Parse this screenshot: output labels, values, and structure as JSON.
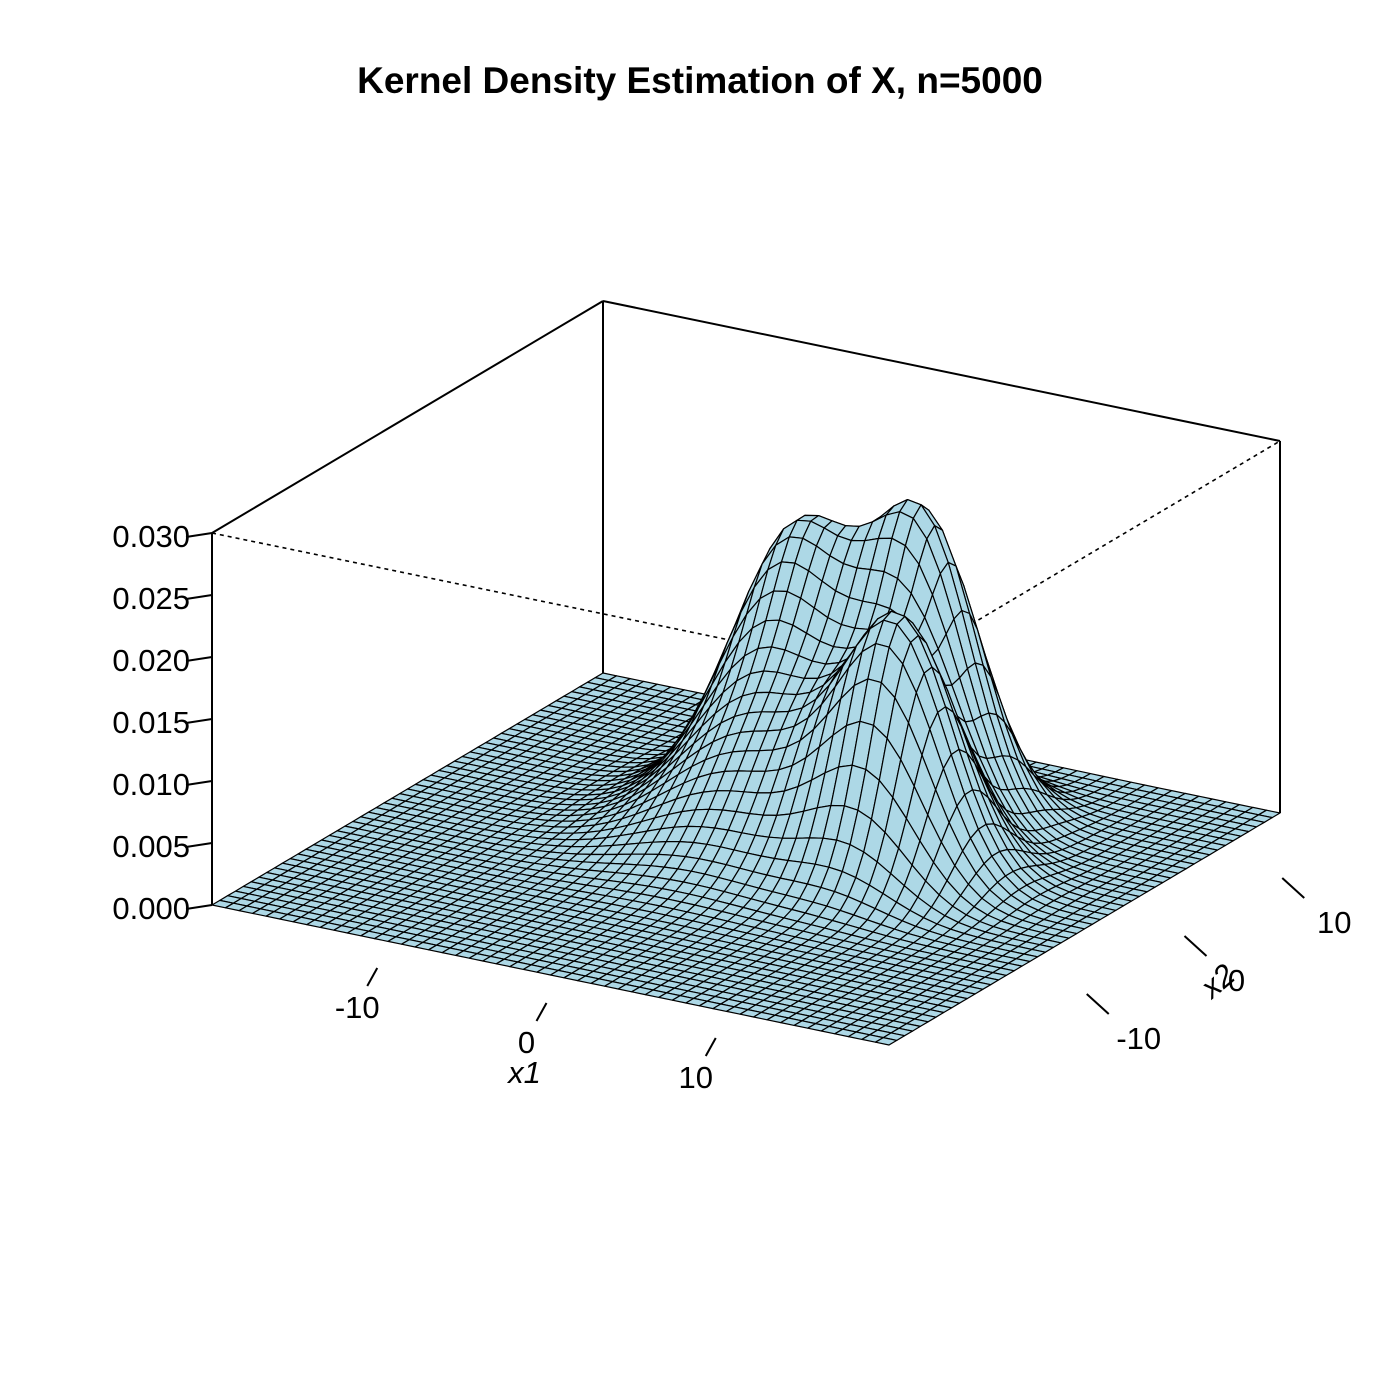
{
  "chart_data": {
    "type": "surface",
    "title": "Kernel Density Estimation of X, n=5000",
    "xlabel": "x1",
    "ylabel": "x2",
    "zlabel": "",
    "xlim": [
      -20,
      20
    ],
    "ylim": [
      -20,
      20
    ],
    "zlim": [
      0,
      0.03
    ],
    "x_ticks": [
      {
        "value": -10,
        "label": "-10"
      },
      {
        "value": 0,
        "label": "0"
      },
      {
        "value": 10,
        "label": "10"
      }
    ],
    "y_ticks": [
      {
        "value": -10,
        "label": "-10"
      },
      {
        "value": 0,
        "label": "0"
      },
      {
        "value": 10,
        "label": "10"
      }
    ],
    "z_ticks": [
      {
        "value": 0.0,
        "label": "0.000"
      },
      {
        "value": 0.005,
        "label": "0.005"
      },
      {
        "value": 0.01,
        "label": "0.010"
      },
      {
        "value": 0.015,
        "label": "0.015"
      },
      {
        "value": 0.02,
        "label": "0.020"
      },
      {
        "value": 0.025,
        "label": "0.025"
      },
      {
        "value": 0.03,
        "label": "0.030"
      }
    ],
    "grid_n": 50,
    "surface_color": "#add8e6",
    "line_color": "#000000",
    "components": [
      {
        "x1": 5,
        "x2": 10,
        "height": 0.0215,
        "spread": 2.8
      },
      {
        "x1": -2,
        "x2": 9,
        "height": 0.018,
        "spread": 3.2
      },
      {
        "x1": 8,
        "x2": 2,
        "height": 0.0185,
        "spread": 3.0
      },
      {
        "x1": 0,
        "x2": 3,
        "height": 0.01,
        "spread": 4.5
      }
    ]
  }
}
